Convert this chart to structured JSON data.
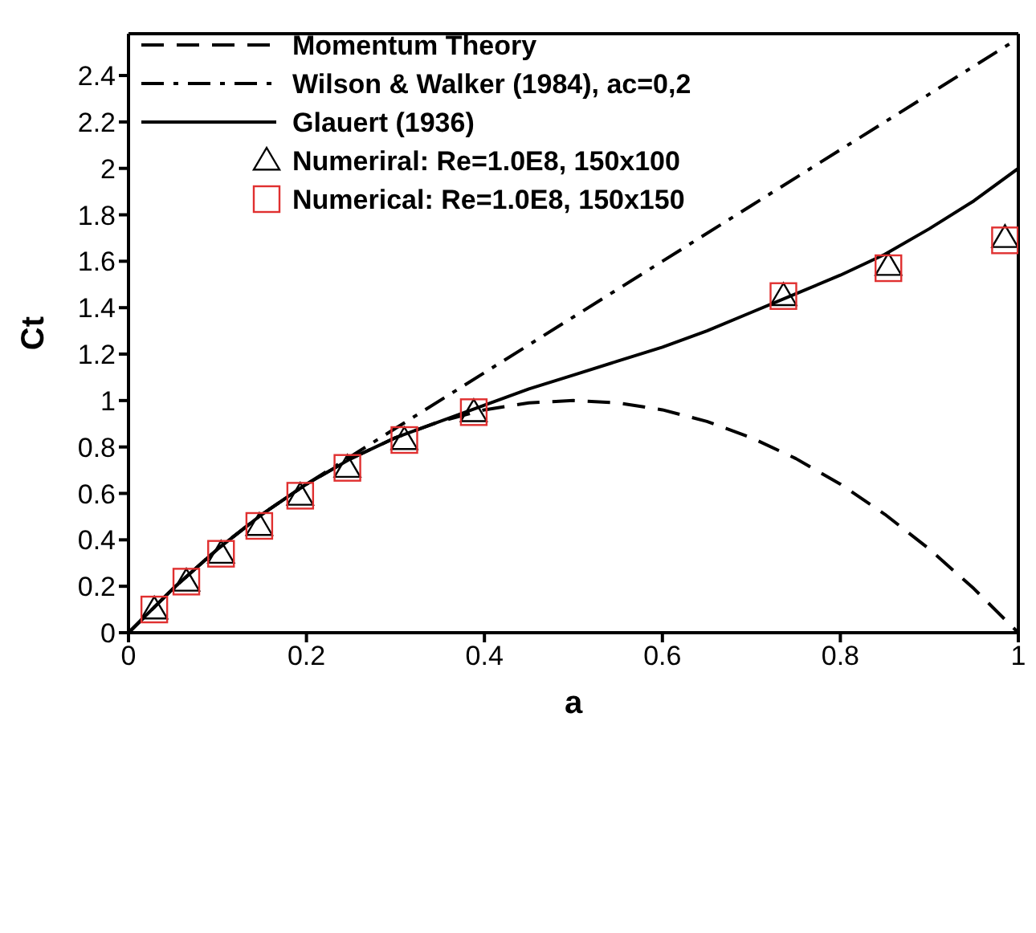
{
  "chart_data": {
    "type": "line",
    "xlabel": "a",
    "ylabel": "Ct",
    "xlim": [
      0,
      1
    ],
    "ylim": [
      0,
      2.58
    ],
    "xticks": [
      0,
      0.2,
      0.4,
      0.6,
      0.8,
      1
    ],
    "yticks": [
      0,
      0.2,
      0.4,
      0.6,
      0.8,
      1,
      1.2,
      1.4,
      1.6,
      1.8,
      2,
      2.2,
      2.4
    ],
    "grid": false,
    "legend": "top left",
    "series": [
      {
        "name": "Momentum Theory",
        "color": "#000000",
        "line_style": "dashed",
        "x": [
          0,
          0.05,
          0.1,
          0.15,
          0.2,
          0.25,
          0.3,
          0.35,
          0.4,
          0.45,
          0.5,
          0.55,
          0.6,
          0.65,
          0.7,
          0.75,
          0.8,
          0.85,
          0.9,
          0.95,
          1
        ],
        "values": [
          0,
          0.19,
          0.36,
          0.51,
          0.64,
          0.75,
          0.84,
          0.91,
          0.96,
          0.99,
          1,
          0.99,
          0.96,
          0.91,
          0.84,
          0.75,
          0.64,
          0.51,
          0.36,
          0.19,
          0
        ]
      },
      {
        "name": "Wilson & Walker (1984), ac=0,2",
        "color": "#000000",
        "line_style": "dashdot",
        "x": [
          0,
          0.05,
          0.1,
          0.15,
          0.2,
          0.3,
          0.4,
          0.5,
          0.6,
          0.7,
          0.8,
          0.9,
          1
        ],
        "values": [
          0,
          0.19,
          0.36,
          0.51,
          0.64,
          0.88,
          1.12,
          1.36,
          1.6,
          1.84,
          2.08,
          2.32,
          2.56
        ]
      },
      {
        "name": "Glauert (1936)",
        "color": "#000000",
        "line_style": "solid",
        "x": [
          0,
          0.05,
          0.1,
          0.15,
          0.2,
          0.25,
          0.3,
          0.35,
          0.4,
          0.45,
          0.5,
          0.55,
          0.6,
          0.65,
          0.7,
          0.75,
          0.8,
          0.85,
          0.9,
          0.95,
          1
        ],
        "values": [
          0,
          0.19,
          0.36,
          0.51,
          0.64,
          0.75,
          0.84,
          0.91,
          0.98,
          1.05,
          1.11,
          1.17,
          1.23,
          1.3,
          1.38,
          1.46,
          1.54,
          1.63,
          1.74,
          1.86,
          2.0
        ]
      },
      {
        "name": "Numeriral: Re=1.0E8, 150x100",
        "type": "scatter",
        "color": "#000000",
        "marker": "triangle",
        "x": [
          0.029,
          0.065,
          0.104,
          0.147,
          0.193,
          0.246,
          0.31,
          0.388,
          0.736,
          0.854,
          0.985
        ],
        "values": [
          0.1,
          0.22,
          0.34,
          0.46,
          0.59,
          0.71,
          0.83,
          0.95,
          1.45,
          1.58,
          1.7
        ]
      },
      {
        "name": "Numerical: Re=1.0E8, 150x150",
        "type": "scatter",
        "color": "#e03030",
        "marker": "square",
        "x": [
          0.029,
          0.065,
          0.104,
          0.147,
          0.193,
          0.246,
          0.31,
          0.388,
          0.736,
          0.854,
          0.985
        ],
        "values": [
          0.1,
          0.22,
          0.34,
          0.46,
          0.59,
          0.71,
          0.83,
          0.95,
          1.45,
          1.57,
          1.69
        ]
      }
    ]
  }
}
